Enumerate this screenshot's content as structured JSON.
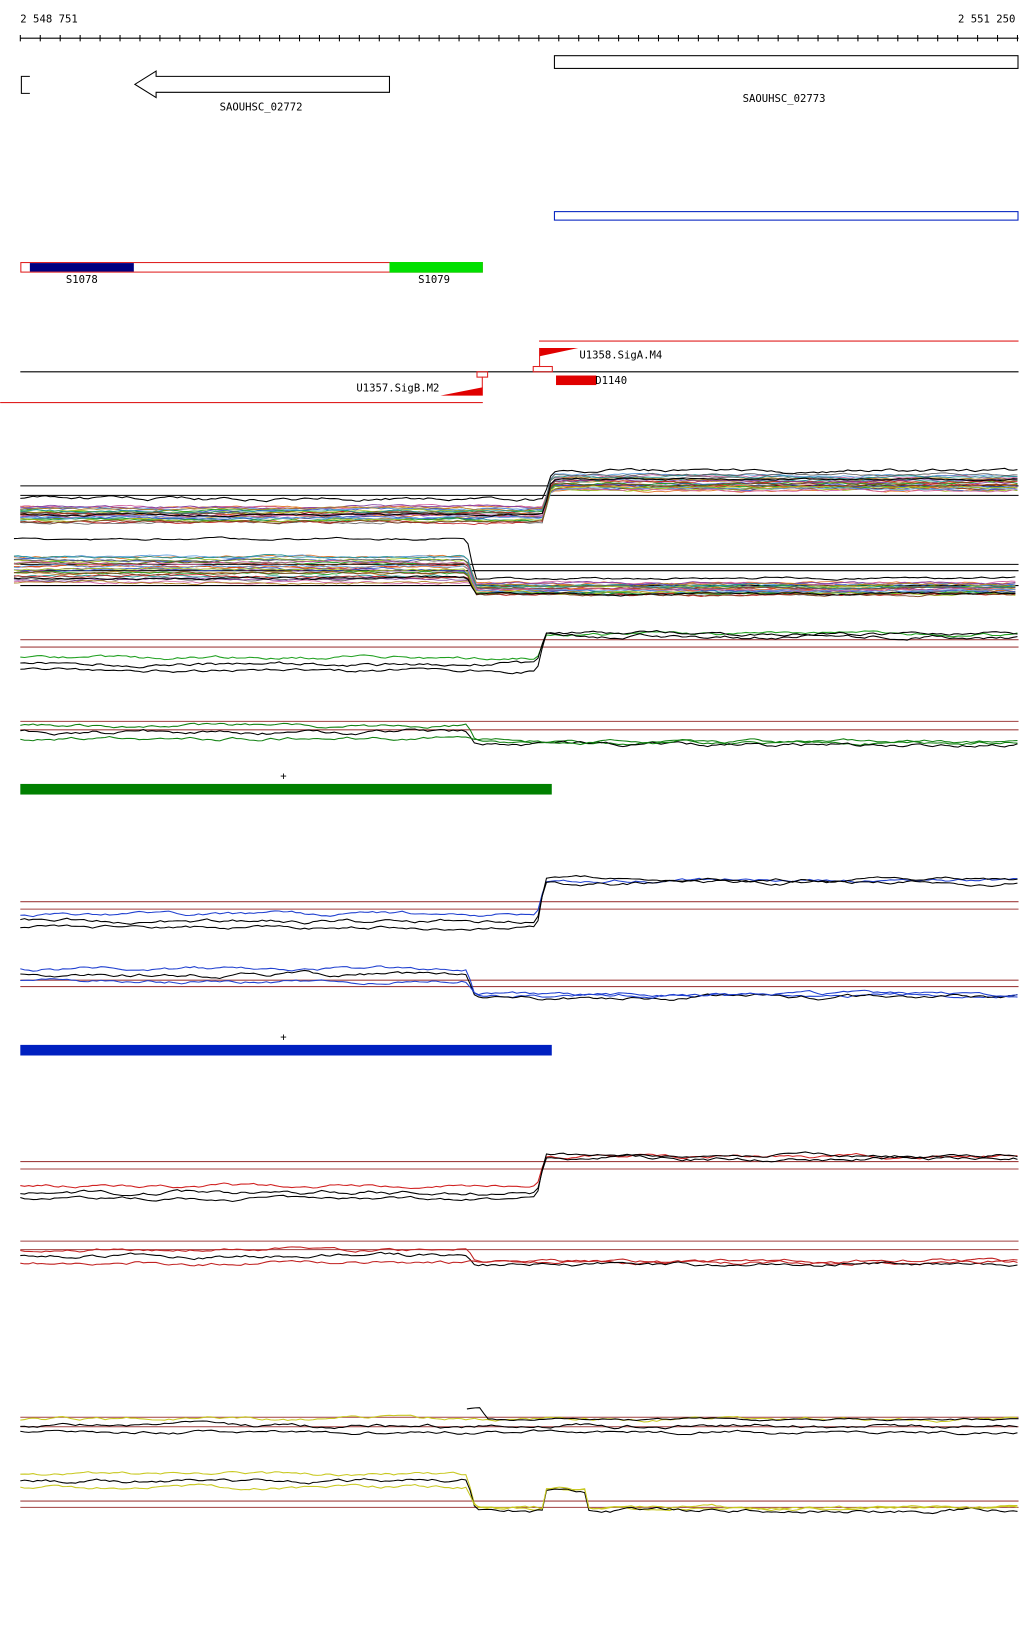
{
  "ruler": {
    "start": "2 548 751",
    "end": "2 551 250"
  },
  "genes": [
    {
      "label": "SAOUHSC_02772"
    },
    {
      "label": "SAOUHSC_02773"
    }
  ],
  "segments": [
    {
      "label": "S1078"
    },
    {
      "label": "S1079"
    }
  ],
  "promoters": [
    {
      "label": "U1358.SigA.M4"
    },
    {
      "label": "D1140"
    },
    {
      "label": "U1357.SigB.M2"
    }
  ],
  "conditions": [
    {
      "label": "+"
    },
    {
      "label": "+"
    }
  ]
}
